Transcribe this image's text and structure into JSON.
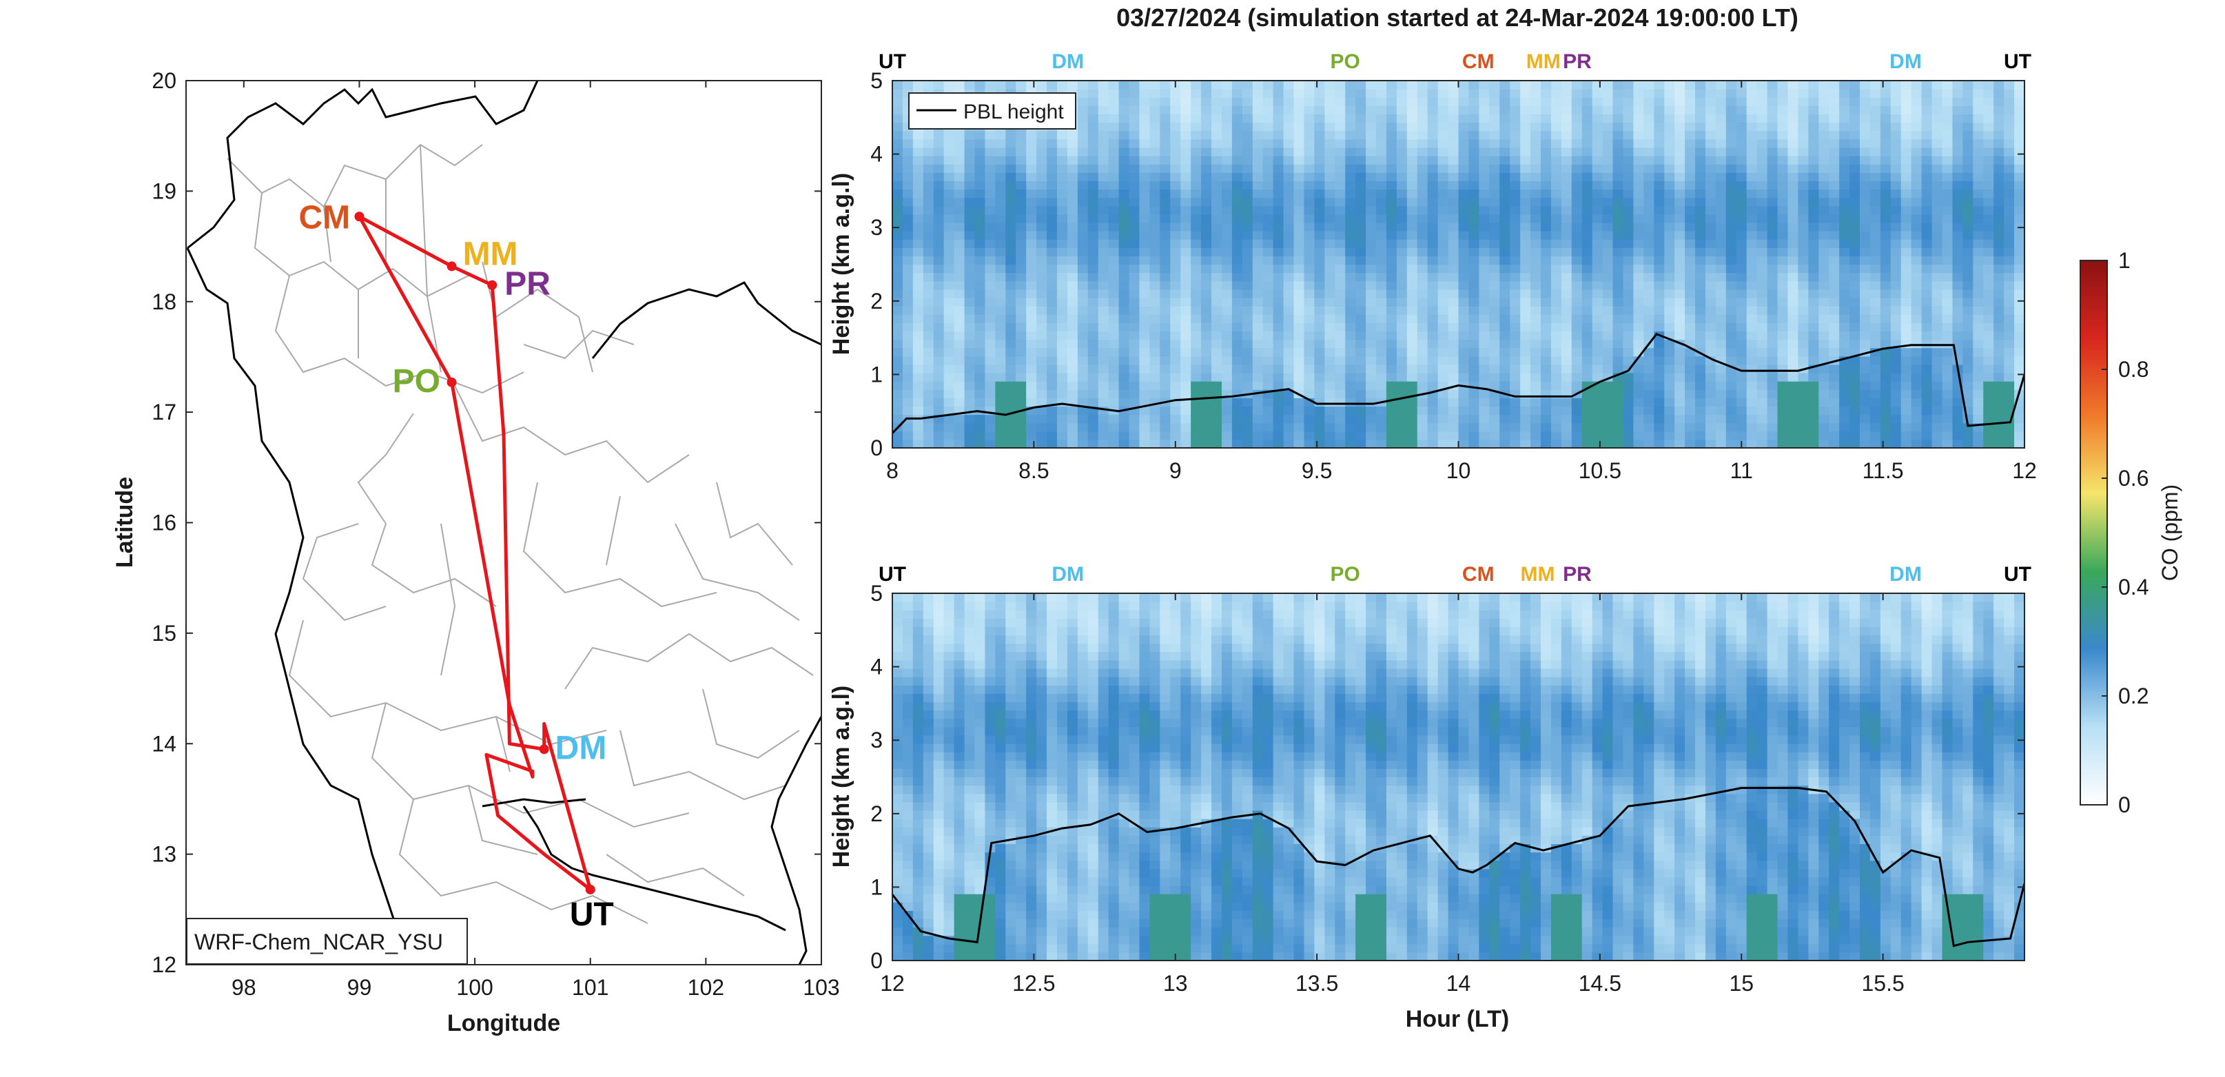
{
  "figure": {
    "title": "03/27/2024 (simulation started at 24-Mar-2024 19:00:00 LT)"
  },
  "chart_data": [
    {
      "type": "map",
      "panel": "flight-track-map",
      "xlabel": "Longitude",
      "ylabel": "Latitude",
      "xlim": [
        97.5,
        103
      ],
      "ylim": [
        12,
        20
      ],
      "xticks": [
        "98",
        "99",
        "100",
        "101",
        "102",
        "103"
      ],
      "yticks": [
        "12",
        "13",
        "14",
        "15",
        "16",
        "17",
        "18",
        "19",
        "20"
      ],
      "model_label": "WRF-Chem_NCAR_YSU",
      "track_color": "#e8151b",
      "track": [
        [
          101.0,
          12.68
        ],
        [
          100.6,
          14.18
        ],
        [
          100.6,
          13.95
        ],
        [
          100.3,
          14.0
        ],
        [
          100.25,
          16.8
        ],
        [
          100.15,
          18.15
        ],
        [
          99.8,
          18.32
        ],
        [
          99.0,
          18.77
        ],
        [
          99.8,
          17.27
        ],
        [
          100.3,
          14.35
        ],
        [
          100.5,
          13.7
        ],
        [
          100.5,
          13.75
        ],
        [
          100.1,
          13.9
        ],
        [
          100.2,
          13.35
        ],
        [
          100.6,
          13.0
        ],
        [
          101.0,
          12.68
        ]
      ],
      "stations": [
        {
          "code": "CM",
          "lon": 99.0,
          "lat": 18.77,
          "color": "#d9531e"
        },
        {
          "code": "MM",
          "lon": 99.8,
          "lat": 18.32,
          "color": "#edb120"
        },
        {
          "code": "PR",
          "lon": 100.15,
          "lat": 18.15,
          "color": "#7e2f8e"
        },
        {
          "code": "PO",
          "lon": 99.8,
          "lat": 17.27,
          "color": "#77ac30"
        },
        {
          "code": "DM",
          "lon": 100.6,
          "lat": 13.95,
          "color": "#4dbeee"
        },
        {
          "code": "UT",
          "lon": 101.0,
          "lat": 12.68,
          "color": "#000000"
        }
      ]
    },
    {
      "type": "heatmap",
      "panel": "co-curtain-8-12",
      "x_range": [
        8,
        12
      ],
      "ylim": [
        0,
        5
      ],
      "xticks": [
        "8",
        "8.5",
        "9",
        "9.5",
        "10",
        "10.5",
        "11",
        "11.5",
        "12"
      ],
      "yticks": [
        "0",
        "1",
        "2",
        "3",
        "4",
        "5"
      ],
      "ylabel": "Height (km a.g.l)",
      "legend": "PBL height",
      "legend_position": "top-left",
      "station_markers": [
        {
          "code": "UT",
          "x": 8.0,
          "color": "#000000"
        },
        {
          "code": "DM",
          "x": 8.62,
          "color": "#4dbeee"
        },
        {
          "code": "PO",
          "x": 9.6,
          "color": "#77ac30"
        },
        {
          "code": "CM",
          "x": 10.07,
          "color": "#d9531e"
        },
        {
          "code": "MM",
          "x": 10.3,
          "color": "#edb120"
        },
        {
          "code": "PR",
          "x": 10.42,
          "color": "#7e2f8e"
        },
        {
          "code": "DM",
          "x": 11.58,
          "color": "#4dbeee"
        },
        {
          "code": "UT",
          "x": 11.96,
          "color": "#000000"
        }
      ],
      "pbl_height": {
        "x": [
          8.0,
          8.05,
          8.1,
          8.3,
          8.4,
          8.5,
          8.6,
          8.8,
          9.0,
          9.2,
          9.4,
          9.5,
          9.7,
          9.9,
          10.0,
          10.1,
          10.2,
          10.3,
          10.4,
          10.5,
          10.6,
          10.7,
          10.8,
          10.9,
          11.0,
          11.2,
          11.4,
          11.5,
          11.6,
          11.75,
          11.8,
          11.95,
          12.0
        ],
        "y": [
          0.2,
          0.4,
          0.4,
          0.5,
          0.45,
          0.55,
          0.6,
          0.5,
          0.65,
          0.7,
          0.8,
          0.6,
          0.6,
          0.75,
          0.85,
          0.8,
          0.7,
          0.7,
          0.7,
          0.9,
          1.05,
          1.55,
          1.4,
          1.2,
          1.05,
          1.05,
          1.25,
          1.35,
          1.4,
          1.4,
          0.3,
          0.35,
          1.0
        ]
      }
    },
    {
      "type": "heatmap",
      "panel": "co-curtain-12-16",
      "x_range": [
        12,
        16
      ],
      "ylim": [
        0,
        5
      ],
      "xticks": [
        "12",
        "12.5",
        "13",
        "13.5",
        "14",
        "14.5",
        "15",
        "15.5"
      ],
      "yticks": [
        "0",
        "1",
        "2",
        "3",
        "4",
        "5"
      ],
      "xlabel": "Hour (LT)",
      "ylabel": "Height (km a.g.l)",
      "station_markers": [
        {
          "code": "UT",
          "x": 12.0,
          "color": "#000000"
        },
        {
          "code": "DM",
          "x": 12.62,
          "color": "#4dbeee"
        },
        {
          "code": "PO",
          "x": 13.6,
          "color": "#77ac30"
        },
        {
          "code": "CM",
          "x": 14.07,
          "color": "#d9531e"
        },
        {
          "code": "MM",
          "x": 14.28,
          "color": "#edb120"
        },
        {
          "code": "PR",
          "x": 14.42,
          "color": "#7e2f8e"
        },
        {
          "code": "DM",
          "x": 15.58,
          "color": "#4dbeee"
        },
        {
          "code": "UT",
          "x": 15.96,
          "color": "#000000"
        }
      ],
      "pbl_height": {
        "x": [
          12.0,
          12.1,
          12.2,
          12.3,
          12.35,
          12.5,
          12.6,
          12.7,
          12.8,
          12.9,
          13.0,
          13.2,
          13.3,
          13.4,
          13.5,
          13.6,
          13.7,
          13.8,
          13.9,
          14.0,
          14.05,
          14.1,
          14.2,
          14.3,
          14.5,
          14.6,
          14.8,
          15.0,
          15.2,
          15.3,
          15.4,
          15.5,
          15.6,
          15.7,
          15.75,
          15.8,
          15.95,
          16.0
        ],
        "y": [
          0.9,
          0.4,
          0.3,
          0.25,
          1.6,
          1.7,
          1.8,
          1.85,
          2.0,
          1.75,
          1.8,
          1.95,
          2.0,
          1.8,
          1.35,
          1.3,
          1.5,
          1.6,
          1.7,
          1.25,
          1.2,
          1.3,
          1.6,
          1.5,
          1.7,
          2.1,
          2.2,
          2.35,
          2.35,
          2.3,
          1.9,
          1.2,
          1.5,
          1.4,
          0.2,
          0.25,
          0.3,
          1.05
        ]
      }
    },
    {
      "type": "colorbar",
      "label": "CO (ppm)",
      "range": [
        0,
        1
      ],
      "ticks": [
        "0",
        "0.2",
        "0.4",
        "0.6",
        "0.8",
        "1"
      ],
      "colormap": [
        "#ffffff",
        "#b8e0f5",
        "#3b89cc",
        "#3aa85a",
        "#f5e56b",
        "#f07a2a",
        "#d7261e",
        "#8b1212"
      ]
    }
  ]
}
